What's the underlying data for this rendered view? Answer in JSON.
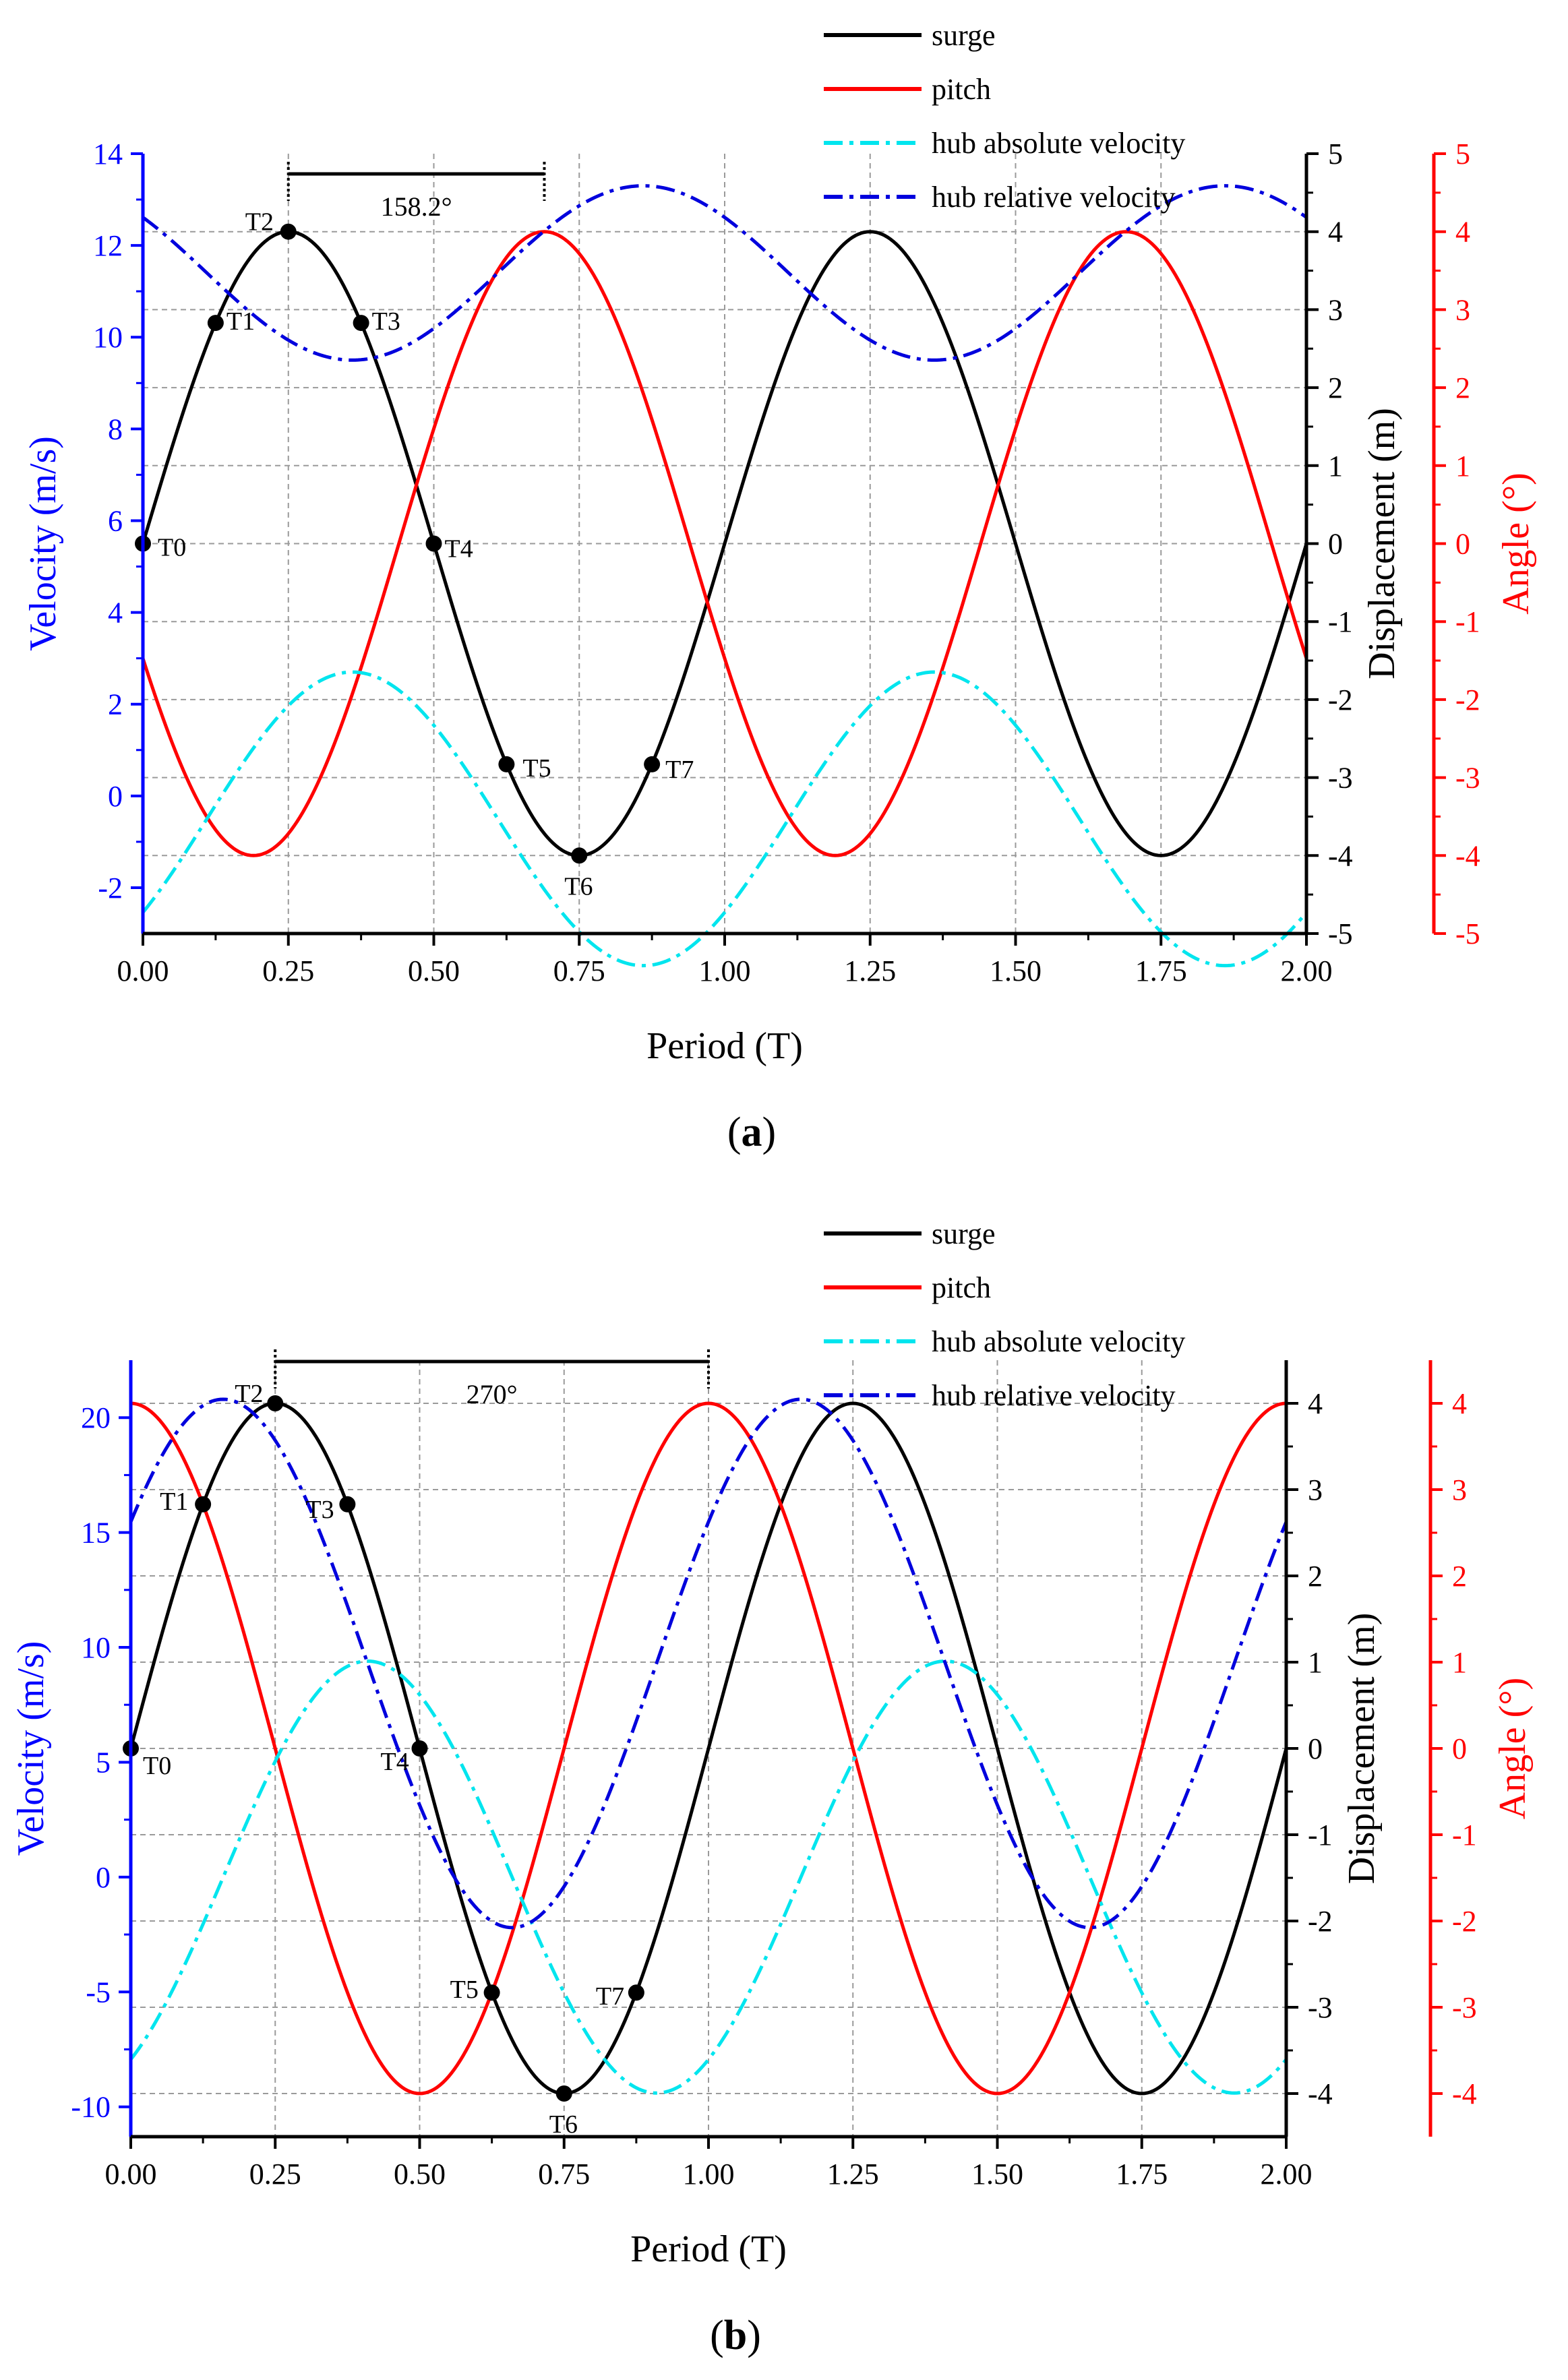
{
  "legend_entries": [
    {
      "key": "surge",
      "label": "surge",
      "color": "#000000",
      "dash": "solid"
    },
    {
      "key": "pitch",
      "label": "pitch",
      "color": "#ff0000",
      "dash": "solid"
    },
    {
      "key": "hub_abs",
      "label": "hub absolute velocity",
      "color": "#00e5ee",
      "dash": "dashdot"
    },
    {
      "key": "hub_rel",
      "label": "hub relative velocity",
      "color": "#0000dd",
      "dash": "dashdot"
    }
  ],
  "chart_data": [
    {
      "type": "line",
      "id": "a",
      "caption": "a",
      "xlabel": "Period (T)",
      "xlim": [
        0,
        2
      ],
      "xticks": [
        "0.00",
        "0.25",
        "0.50",
        "0.75",
        "1.00",
        "1.25",
        "1.50",
        "1.75",
        "2.00"
      ],
      "axes": {
        "velocity": {
          "label": "Velocity (m/s)",
          "range": [
            -3,
            14
          ],
          "ticks": [
            "-2",
            "0",
            "2",
            "4",
            "6",
            "8",
            "10",
            "12",
            "14"
          ],
          "color": "#0000ff"
        },
        "displacement": {
          "label": "Displacement (m)",
          "range": [
            -5,
            5
          ],
          "ticks": [
            "-5",
            "-4",
            "-3",
            "-2",
            "-1",
            "0",
            "1",
            "2",
            "3",
            "4",
            "5"
          ],
          "color": "#000000"
        },
        "angle": {
          "label": "Angle (°)",
          "range": [
            -5,
            5
          ],
          "ticks": [
            "-5",
            "-4",
            "-3",
            "-2",
            "-1",
            "0",
            "1",
            "2",
            "3",
            "4",
            "5"
          ],
          "color": "#ff0000"
        }
      },
      "series": [
        {
          "key": "surge",
          "name": "surge",
          "axis": "displacement",
          "model": "sine",
          "amplitude": 4,
          "offset": 0,
          "phase_periods": 0
        },
        {
          "key": "pitch",
          "name": "pitch",
          "axis": "angle",
          "model": "sine",
          "amplitude": 4,
          "offset": 0,
          "phase_periods": -0.44
        },
        {
          "key": "hub_abs",
          "name": "hub absolute velocity",
          "axis": "velocity",
          "model": "sine",
          "amplitude": 3.2,
          "offset": -0.5,
          "phase_periods": -0.11
        },
        {
          "key": "hub_rel",
          "name": "hub relative velocity",
          "axis": "velocity",
          "model": "sine",
          "amplitude": 1.9,
          "offset": 11.4,
          "phase_periods": 0.39
        }
      ],
      "marked_points": [
        {
          "label": "T0",
          "x": 0,
          "y": 0
        },
        {
          "label": "T1",
          "x": 0.125,
          "y": 2.83
        },
        {
          "label": "T2",
          "x": 0.25,
          "y": 4
        },
        {
          "label": "T3",
          "x": 0.375,
          "y": 2.83
        },
        {
          "label": "T4",
          "x": 0.5,
          "y": 0
        },
        {
          "label": "T5",
          "x": 0.625,
          "y": -2.83
        },
        {
          "label": "T6",
          "x": 0.75,
          "y": -4
        },
        {
          "label": "T7",
          "x": 0.875,
          "y": -2.83
        }
      ],
      "phase_annotation": {
        "label": "158.2°",
        "x_start": 0.25,
        "x_end": 0.69
      }
    },
    {
      "type": "line",
      "id": "b",
      "caption": "b",
      "xlabel": "Period (T)",
      "xlim": [
        0,
        2
      ],
      "xticks": [
        "0.00",
        "0.25",
        "0.50",
        "0.75",
        "1.00",
        "1.25",
        "1.50",
        "1.75",
        "2.00"
      ],
      "axes": {
        "velocity": {
          "label": "Velocity (m/s)",
          "range": [
            -11.3,
            22.5
          ],
          "ticks": [
            "-10",
            "-5",
            "0",
            "5",
            "10",
            "15",
            "20"
          ],
          "color": "#0000ff"
        },
        "displacement": {
          "label": "Displacement (m)",
          "range": [
            -4.5,
            4.5
          ],
          "ticks": [
            "-4",
            "-3",
            "-2",
            "-1",
            "0",
            "1",
            "2",
            "3",
            "4"
          ],
          "color": "#000000"
        },
        "angle": {
          "label": "Angle (°)",
          "range": [
            -4.5,
            4.5
          ],
          "ticks": [
            "-4",
            "-3",
            "-2",
            "-1",
            "0",
            "1",
            "2",
            "3",
            "4"
          ],
          "color": "#ff0000"
        }
      },
      "series": [
        {
          "key": "surge",
          "name": "surge",
          "axis": "displacement",
          "model": "sine",
          "amplitude": 4,
          "offset": 0,
          "phase_periods": 0
        },
        {
          "key": "pitch",
          "name": "pitch",
          "axis": "angle",
          "model": "sine",
          "amplitude": 4,
          "offset": 0,
          "phase_periods": -0.75
        },
        {
          "key": "hub_abs",
          "name": "hub absolute velocity",
          "axis": "velocity",
          "model": "sine",
          "amplitude": 9.4,
          "offset": 0,
          "phase_periods": -0.16
        },
        {
          "key": "hub_rel",
          "name": "hub relative velocity",
          "axis": "velocity",
          "model": "sine",
          "amplitude": 11.5,
          "offset": 9.3,
          "phase_periods": 0.09
        }
      ],
      "marked_points": [
        {
          "label": "T0",
          "x": 0,
          "y": 0
        },
        {
          "label": "T1",
          "x": 0.125,
          "y": 2.83
        },
        {
          "label": "T2",
          "x": 0.25,
          "y": 4
        },
        {
          "label": "T3",
          "x": 0.375,
          "y": 2.83
        },
        {
          "label": "T4",
          "x": 0.5,
          "y": 0
        },
        {
          "label": "T5",
          "x": 0.625,
          "y": -2.83
        },
        {
          "label": "T6",
          "x": 0.75,
          "y": -4
        },
        {
          "label": "T7",
          "x": 0.875,
          "y": -2.83
        }
      ],
      "phase_annotation": {
        "label": "270°",
        "x_start": 0.25,
        "x_end": 1.0
      }
    }
  ]
}
